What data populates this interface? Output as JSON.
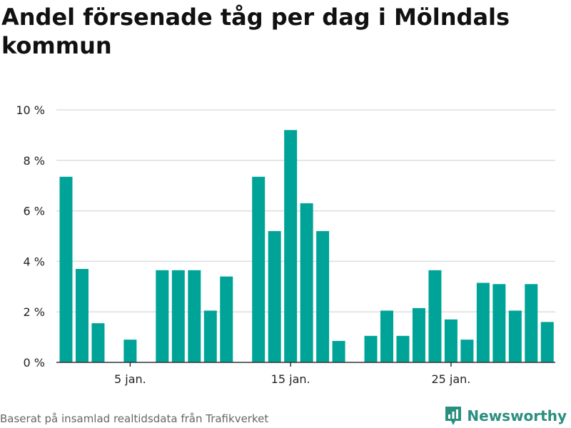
{
  "title": "Andel försenade tåg per dag i Mölndals kommun",
  "source": "Baserat på insamlad realtidsdata från Trafikverket",
  "brand": {
    "name": "Newsworthy",
    "color": "#2b8f80",
    "icon": "bar-chart-logo-icon"
  },
  "colors": {
    "bar": "#00a398",
    "grid": "#dddddd",
    "axis": "#333333"
  },
  "chart_data": {
    "type": "bar",
    "title": "Andel försenade tåg per dag i Mölndals kommun",
    "xlabel": "",
    "ylabel": "",
    "x_unit": "day of January",
    "x_ticks": [
      {
        "day": 5,
        "label": "5 jan."
      },
      {
        "day": 15,
        "label": "15 jan."
      },
      {
        "day": 25,
        "label": "25 jan."
      }
    ],
    "y_ticks": [
      {
        "value": 0,
        "label": "0 %"
      },
      {
        "value": 2,
        "label": "2 %"
      },
      {
        "value": 4,
        "label": "4 %"
      },
      {
        "value": 6,
        "label": "6 %"
      },
      {
        "value": 8,
        "label": "8 %"
      },
      {
        "value": 10,
        "label": "10 %"
      }
    ],
    "xlim": [
      0.4,
      31.5
    ],
    "ylim": [
      0,
      10
    ],
    "grid": true,
    "series": [
      {
        "days": [
          1,
          2,
          3,
          4,
          5,
          6,
          7,
          8,
          9,
          10,
          11,
          12,
          13,
          14,
          15,
          16,
          17,
          18,
          19,
          20,
          21,
          22,
          23,
          24,
          25,
          26,
          27,
          28,
          29,
          30,
          31
        ],
        "values": [
          7.35,
          3.7,
          1.55,
          0,
          0.9,
          0,
          3.65,
          3.65,
          3.65,
          2.05,
          3.4,
          0,
          7.35,
          5.2,
          9.2,
          6.3,
          5.2,
          0.85,
          0,
          1.05,
          2.05,
          1.05,
          2.15,
          3.65,
          1.7,
          0.9,
          3.15,
          3.1,
          2.05,
          3.1,
          1.6
        ]
      }
    ]
  }
}
